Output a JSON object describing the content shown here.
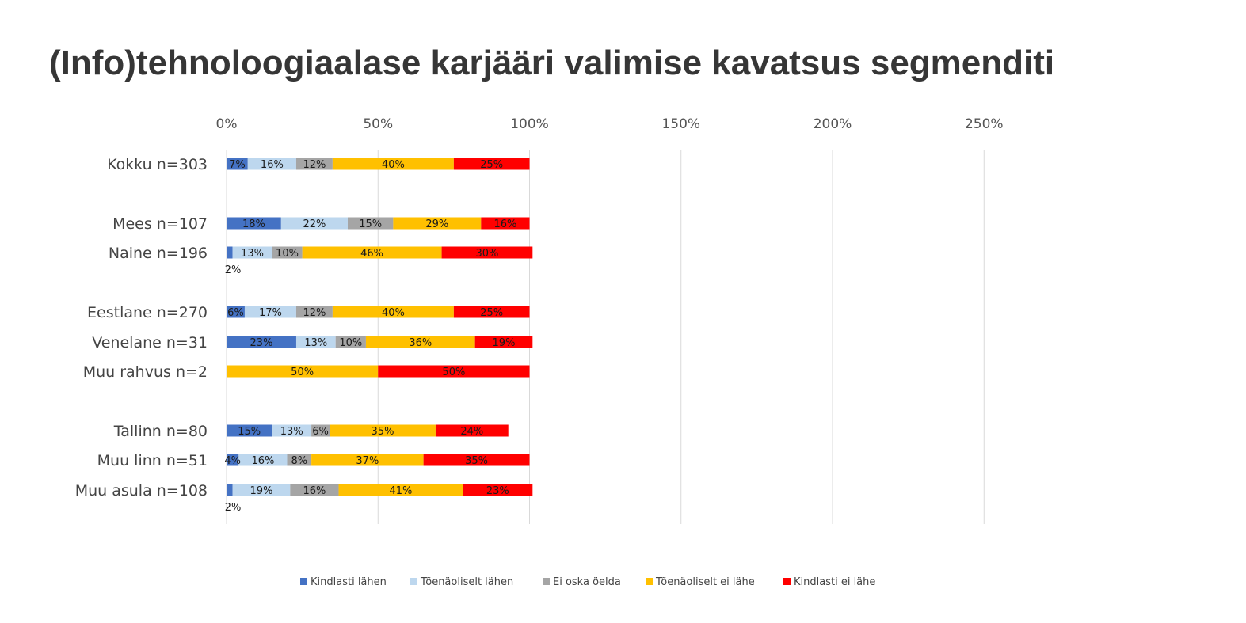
{
  "title": "(Info)tehnoloogiaalase karjääri valimise kavatsus segmenditi",
  "chart_data": {
    "type": "bar",
    "orientation": "horizontal",
    "stacked": true,
    "xlim": [
      0,
      300
    ],
    "x_ticks": [
      0,
      50,
      100,
      150,
      200,
      250
    ],
    "x_tick_labels": [
      "0%",
      "50%",
      "100%",
      "150%",
      "200%",
      "250%"
    ],
    "x_axis_position": "top",
    "grid": true,
    "legend_position": "bottom",
    "categories": [
      "Kokku n=303",
      "Mees n=107",
      "Naine n=196",
      "Eestlane n=270",
      "Venelane n=31",
      "Muu rahvus n=2",
      "Tallinn n=80",
      "Muu linn n=51",
      "Muu asula n=108"
    ],
    "series": [
      {
        "name": "Kindlasti lähen",
        "color": "#4472C4",
        "values": [
          7,
          18,
          2,
          6,
          23,
          0,
          15,
          4,
          2
        ],
        "labels": [
          "7%",
          "18%",
          "2%",
          "6%",
          "23%",
          "",
          "15%",
          "4%",
          "2%"
        ]
      },
      {
        "name": "Tõenäoliselt lähen",
        "color": "#BDD7EE",
        "values": [
          16,
          22,
          13,
          17,
          13,
          0,
          13,
          16,
          19
        ],
        "labels": [
          "16%",
          "22%",
          "13%",
          "17%",
          "13%",
          "",
          "13%",
          "16%",
          "19%"
        ]
      },
      {
        "name": "Ei oska öelda",
        "color": "#A5A5A5",
        "values": [
          12,
          15,
          10,
          12,
          10,
          0,
          6,
          8,
          16
        ],
        "labels": [
          "12%",
          "15%",
          "10%",
          "12%",
          "10%",
          "",
          "6%",
          "8%",
          "16%"
        ]
      },
      {
        "name": "Tõenäoliselt ei lähe",
        "color": "#FFC000",
        "values": [
          40,
          29,
          46,
          40,
          36,
          50,
          35,
          37,
          41
        ],
        "labels": [
          "40%",
          "29%",
          "46%",
          "40%",
          "36%",
          "50%",
          "35%",
          "37%",
          "41%"
        ]
      },
      {
        "name": "Kindlasti ei lähe",
        "color": "#FF0000",
        "values": [
          25,
          16,
          30,
          25,
          19,
          50,
          24,
          35,
          23
        ],
        "labels": [
          "25%",
          "16%",
          "30%",
          "25%",
          "19%",
          "50%",
          "24%",
          "35%",
          "23%"
        ]
      }
    ]
  }
}
